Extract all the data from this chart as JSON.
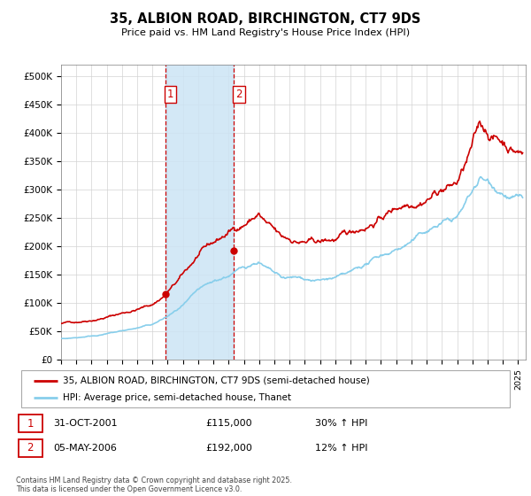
{
  "title": "35, ALBION ROAD, BIRCHINGTON, CT7 9DS",
  "subtitle": "Price paid vs. HM Land Registry's House Price Index (HPI)",
  "ylabel_ticks": [
    "£0",
    "£50K",
    "£100K",
    "£150K",
    "£200K",
    "£250K",
    "£300K",
    "£350K",
    "£400K",
    "£450K",
    "£500K"
  ],
  "ytick_values": [
    0,
    50000,
    100000,
    150000,
    200000,
    250000,
    300000,
    350000,
    400000,
    450000,
    500000
  ],
  "ylim": [
    0,
    520000
  ],
  "xlim_start": 1995.0,
  "xlim_end": 2025.5,
  "sale1_date": 2001.83,
  "sale1_price": 115000,
  "sale2_date": 2006.35,
  "sale2_price": 192000,
  "shade_color": "#cce4f5",
  "vline_color": "#cc0000",
  "line1_color": "#cc0000",
  "line2_color": "#87CEEB",
  "legend_label1": "35, ALBION ROAD, BIRCHINGTON, CT7 9DS (semi-detached house)",
  "legend_label2": "HPI: Average price, semi-detached house, Thanet",
  "footer": "Contains HM Land Registry data © Crown copyright and database right 2025.\nThis data is licensed under the Open Government Licence v3.0.",
  "table_rows": [
    {
      "num": "1",
      "date": "31-OCT-2001",
      "price": "£115,000",
      "hpi": "30% ↑ HPI"
    },
    {
      "num": "2",
      "date": "05-MAY-2006",
      "price": "£192,000",
      "hpi": "12% ↑ HPI"
    }
  ]
}
